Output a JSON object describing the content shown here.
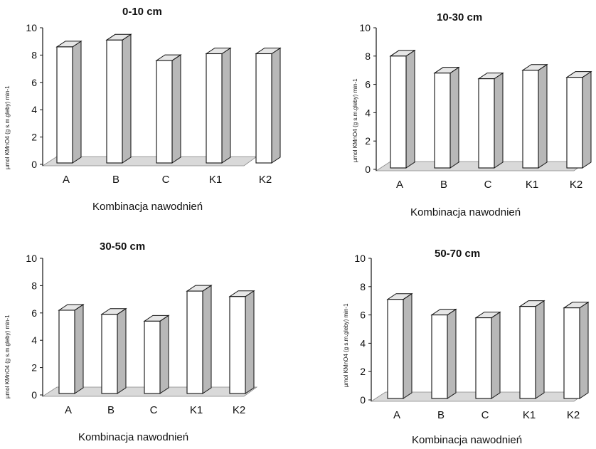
{
  "chart_data": [
    {
      "type": "bar",
      "title": "0-10 cm",
      "xlabel": "Kombinacja nawodnień",
      "ylabel": "µmol KMnO4 (g s.m.gleby) min-1",
      "categories": [
        "A",
        "B",
        "C",
        "K1",
        "K2"
      ],
      "values": [
        8.6,
        9.1,
        7.6,
        8.1,
        8.1
      ],
      "ylim": [
        0,
        10
      ],
      "yticks": [
        "0",
        "2",
        "4",
        "6",
        "8",
        "10"
      ],
      "style": "3d-bar"
    },
    {
      "type": "bar",
      "title": "10-30 cm",
      "xlabel": "Kombinacja nawodnień",
      "ylabel": "µmol KMnO4 (g s.m.gleby) min-1",
      "categories": [
        "A",
        "B",
        "C",
        "K1",
        "K2"
      ],
      "values": [
        8.0,
        6.8,
        6.4,
        7.0,
        6.5
      ],
      "ylim": [
        0,
        10
      ],
      "yticks": [
        "0",
        "2",
        "4",
        "6",
        "8",
        "10"
      ],
      "style": "3d-bar"
    },
    {
      "type": "bar",
      "title": "30-50 cm",
      "xlabel": "Kombinacja nawodnień",
      "ylabel": "µmol KMnO4 (g s.m.gleby) min-1",
      "categories": [
        "A",
        "B",
        "C",
        "K1",
        "K2"
      ],
      "values": [
        6.2,
        5.9,
        5.4,
        7.6,
        7.2
      ],
      "ylim": [
        0,
        10
      ],
      "yticks": [
        "0",
        "2",
        "4",
        "6",
        "8",
        "10"
      ],
      "style": "3d-bar"
    },
    {
      "type": "bar",
      "title": "50-70 cm",
      "xlabel": "Kombinacja nawodnień",
      "ylabel": "µmol KMnO4 (g s.m.gleby) min-1",
      "categories": [
        "A",
        "B",
        "C",
        "K1",
        "K2"
      ],
      "values": [
        7.1,
        6.0,
        5.8,
        6.6,
        6.5
      ],
      "ylim": [
        0,
        10
      ],
      "yticks": [
        "0",
        "2",
        "4",
        "6",
        "8",
        "10"
      ],
      "style": "3d-bar"
    }
  ],
  "colors": {
    "bar_front": "#ffffff",
    "bar_side": "#b8b8b8",
    "bar_top": "#e6e6e6",
    "floor": "#d9d9d9",
    "outline": "#111111"
  }
}
